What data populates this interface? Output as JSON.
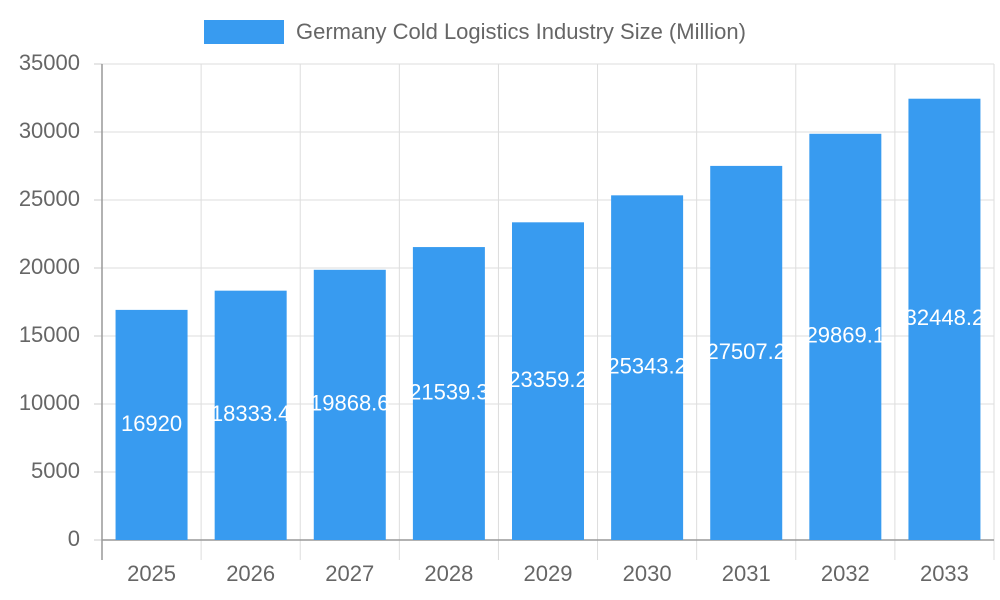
{
  "chart_data": {
    "type": "bar",
    "categories": [
      "2025",
      "2026",
      "2027",
      "2028",
      "2029",
      "2030",
      "2031",
      "2032",
      "2033"
    ],
    "series": [
      {
        "name": "Germany Cold Logistics Industry Size (Million)",
        "color": "#389bf0",
        "values": [
          16920,
          18333.4,
          19868.6,
          21539.3,
          23359.2,
          25343.2,
          27507.2,
          29869.1,
          32448.2
        ]
      }
    ],
    "ylim": [
      0,
      35000
    ],
    "yticks": [
      0,
      5000,
      10000,
      15000,
      20000,
      25000,
      30000,
      35000
    ],
    "grid": true,
    "legend": "top",
    "data_labels": true
  }
}
